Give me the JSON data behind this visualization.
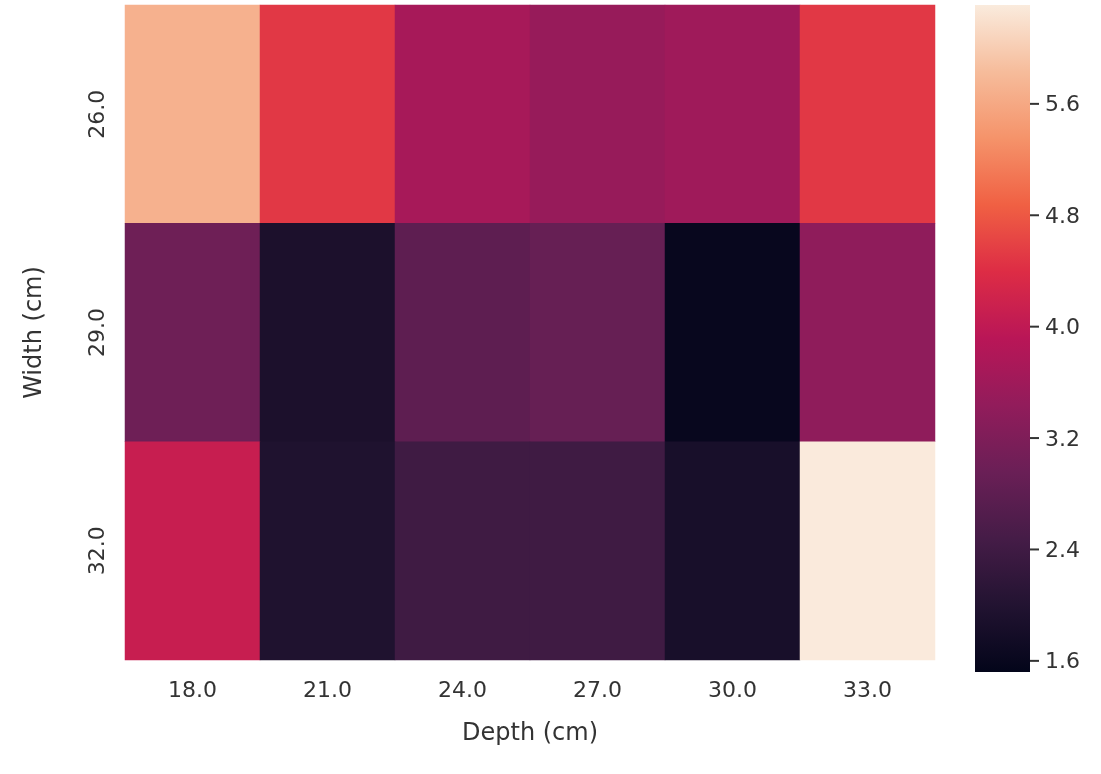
{
  "chart_data": {
    "type": "heatmap",
    "xlabel": "Depth (cm)",
    "ylabel": "Width (cm)",
    "categories": [
      "18.0",
      "21.0",
      "24.0",
      "27.0",
      "30.0",
      "33.0"
    ],
    "y_categories": [
      "26.0",
      "29.0",
      "32.0"
    ],
    "cells": [
      [
        5.7,
        4.5,
        3.7,
        3.5,
        3.6,
        4.5
      ],
      [
        3.0,
        1.9,
        2.8,
        2.9,
        1.6,
        3.4
      ],
      [
        4.1,
        1.95,
        2.4,
        2.4,
        1.85,
        6.3
      ]
    ],
    "clim": [
      1.52,
      6.31
    ],
    "cticks": [
      1.6,
      2.4,
      3.2,
      {
        "value": 4,
        "label": "4.0"
      },
      4.8,
      5.6
    ]
  }
}
